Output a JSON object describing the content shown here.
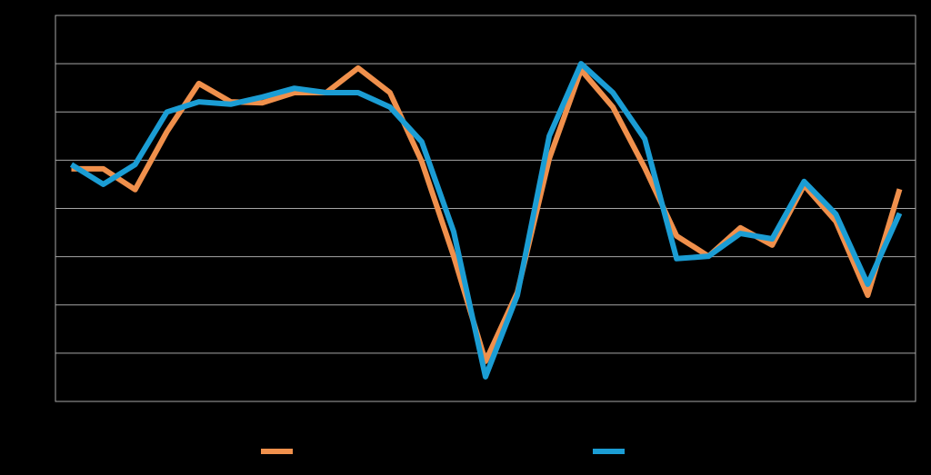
{
  "chart_data": {
    "type": "line",
    "categories": [
      null,
      null,
      null,
      null,
      null,
      null,
      null,
      null,
      null,
      null,
      null,
      null,
      null,
      null,
      null,
      null,
      null,
      null,
      null,
      null,
      null,
      null,
      null,
      null,
      null,
      null,
      null
    ],
    "series": [
      {
        "color": "#f0904c",
        "values": [
          4.82,
          4.82,
          4.39,
          5.59,
          6.59,
          6.21,
          6.19,
          6.4,
          6.4,
          6.91,
          6.4,
          4.97,
          3.01,
          0.83,
          2.26,
          5.03,
          6.87,
          6.1,
          4.84,
          3.43,
          3.01,
          3.6,
          3.24,
          4.48,
          3.73,
          2.2,
          4.4
        ]
      },
      {
        "color": "#1b9dd4",
        "values": [
          4.91,
          4.5,
          4.91,
          6.0,
          6.21,
          6.16,
          6.31,
          6.49,
          6.4,
          6.4,
          6.1,
          5.38,
          3.52,
          0.51,
          2.2,
          5.5,
          7.0,
          6.4,
          5.44,
          2.96,
          3.01,
          3.48,
          3.37,
          4.56,
          3.88,
          2.43,
          3.9
        ]
      }
    ],
    "ylim": [
      0,
      8
    ],
    "yticks": [
      0,
      1,
      2,
      3,
      4,
      5,
      6,
      7,
      8
    ],
    "grid": true
  }
}
